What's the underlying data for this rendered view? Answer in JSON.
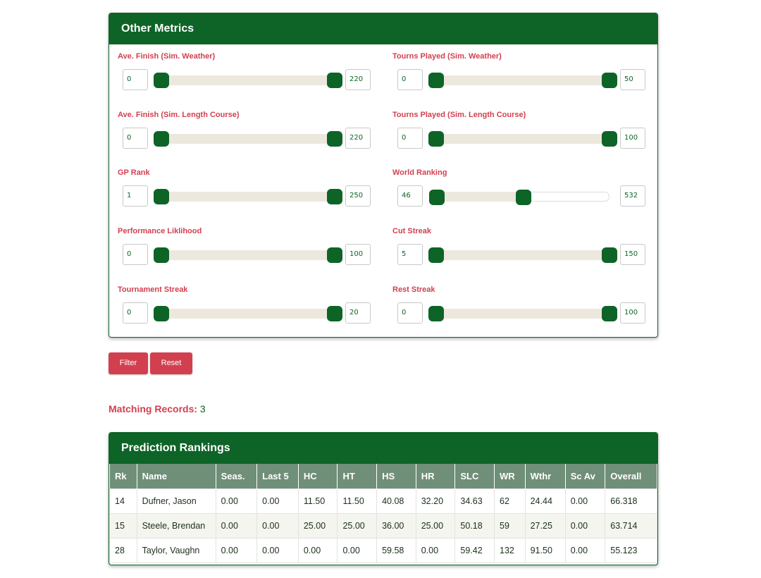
{
  "metrics": {
    "title": "Other Metrics",
    "sliders": [
      {
        "label": "Ave. Finish (Sim. Weather)",
        "min": "0",
        "max": "220",
        "low_frac": 0.0,
        "high_frac": 1.0
      },
      {
        "label": "Tourns Played (Sim. Weather)",
        "min": "0",
        "max": "50",
        "low_frac": 0.0,
        "high_frac": 1.0
      },
      {
        "label": "Ave. Finish (Sim. Length Course)",
        "min": "0",
        "max": "220",
        "low_frac": 0.0,
        "high_frac": 1.0
      },
      {
        "label": "Tourns Played (Sim. Length Course)",
        "min": "0",
        "max": "100",
        "low_frac": 0.0,
        "high_frac": 1.0
      },
      {
        "label": "GP Rank",
        "min": "1",
        "max": "250",
        "low_frac": 0.0,
        "high_frac": 1.0
      },
      {
        "label": "World Ranking",
        "min": "46",
        "max": "532",
        "low_frac": 0.0,
        "high_frac": 0.5
      },
      {
        "label": "Performance Liklihood",
        "min": "0",
        "max": "100",
        "low_frac": 0.0,
        "high_frac": 1.0
      },
      {
        "label": "Cut Streak",
        "min": "5",
        "max": "150",
        "low_frac": 0.0,
        "high_frac": 1.0
      },
      {
        "label": "Tournament Streak",
        "min": "0",
        "max": "20",
        "low_frac": 0.0,
        "high_frac": 1.0
      },
      {
        "label": "Rest Streak",
        "min": "0",
        "max": "100",
        "low_frac": 0.0,
        "high_frac": 1.0
      }
    ]
  },
  "buttons": {
    "filter": "Filter",
    "reset": "Reset"
  },
  "matching": {
    "label": "Matching Records:",
    "count": "3"
  },
  "rankings": {
    "title": "Prediction Rankings",
    "columns": [
      "Rk",
      "Name",
      "Seas.",
      "Last 5",
      "HC",
      "HT",
      "HS",
      "HR",
      "SLC",
      "WR",
      "Wthr",
      "Sc Av",
      "Overall"
    ],
    "rows": [
      [
        "14",
        "Dufner, Jason",
        "0.00",
        "0.00",
        "11.50",
        "11.50",
        "40.08",
        "32.20",
        "34.63",
        "62",
        "24.44",
        "0.00",
        "66.318"
      ],
      [
        "15",
        "Steele, Brendan",
        "0.00",
        "0.00",
        "25.00",
        "25.00",
        "36.00",
        "25.00",
        "50.18",
        "59",
        "27.25",
        "0.00",
        "63.714"
      ],
      [
        "28",
        "Taylor, Vaughn",
        "0.00",
        "0.00",
        "0.00",
        "0.00",
        "59.58",
        "0.00",
        "59.42",
        "132",
        "91.50",
        "0.00",
        "55.123"
      ]
    ]
  },
  "colors": {
    "brand_green": "#0d6426",
    "accent_red": "#d2404f",
    "header_green": "#6f8f78"
  }
}
